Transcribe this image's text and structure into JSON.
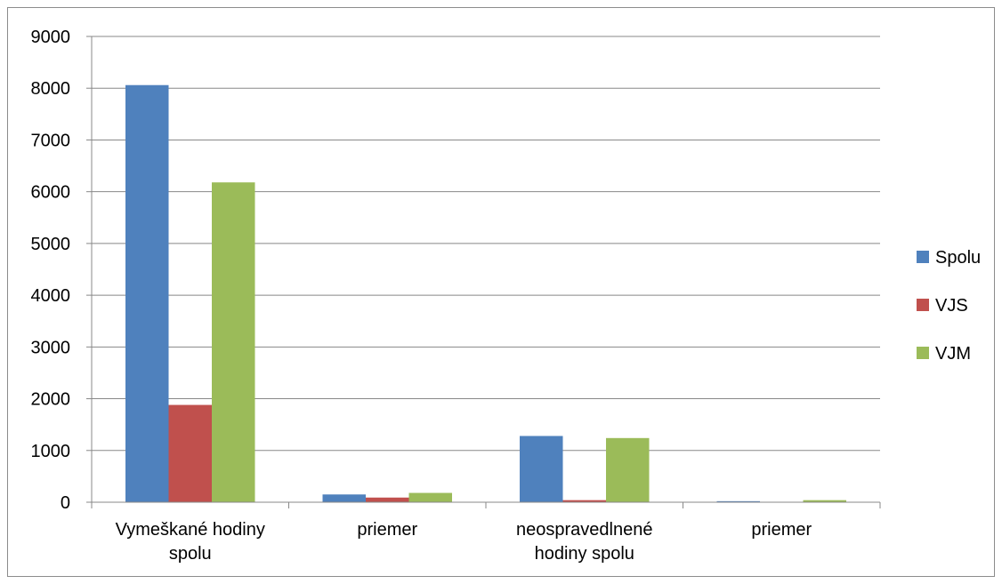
{
  "chart_data": {
    "type": "bar",
    "categories": [
      [
        "Vymeškané hodiny",
        "spolu"
      ],
      [
        "priemer"
      ],
      [
        "neospravedlnené",
        "hodiny spolu"
      ],
      [
        "priemer"
      ]
    ],
    "series": [
      {
        "name": "Spolu",
        "color": "#4f81bd",
        "values": [
          8060,
          150,
          1280,
          20
        ]
      },
      {
        "name": "VJS",
        "color": "#c0504d",
        "values": [
          1880,
          90,
          40,
          5
        ]
      },
      {
        "name": "VJM",
        "color": "#9bbb59",
        "values": [
          6180,
          180,
          1240,
          40
        ]
      }
    ],
    "ylim": [
      0,
      9000
    ],
    "y_ticks": [
      0,
      1000,
      2000,
      3000,
      4000,
      5000,
      6000,
      7000,
      8000,
      9000
    ],
    "grid": true,
    "legend_position": "right"
  }
}
